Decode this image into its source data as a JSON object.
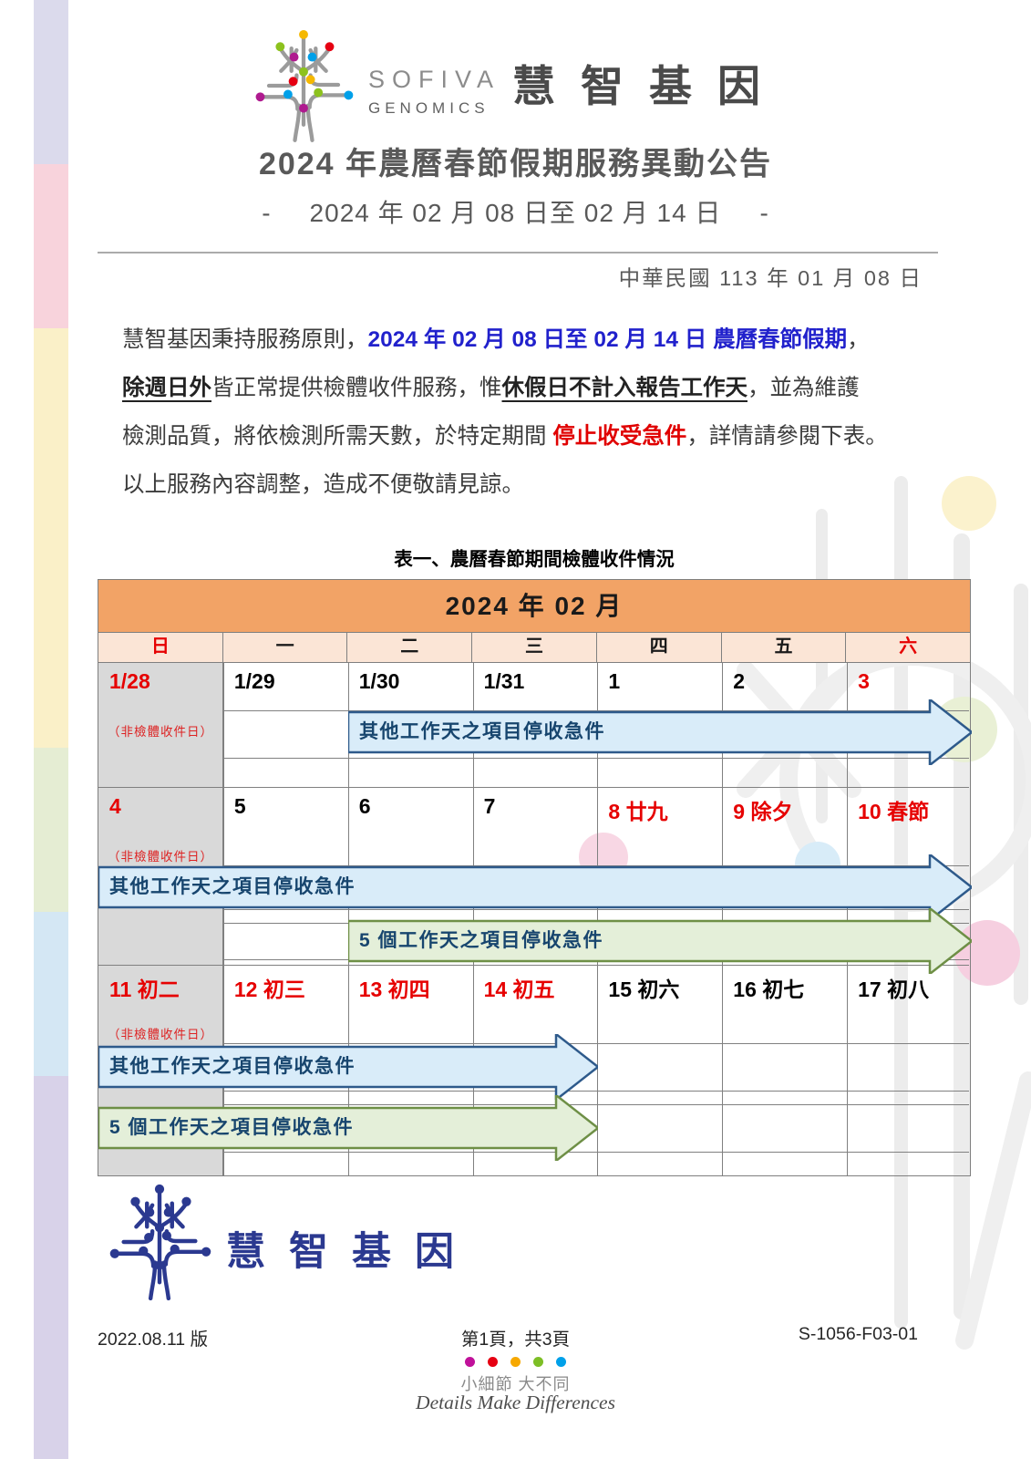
{
  "brand": {
    "name_en_line1": "SOFIVA",
    "name_en_line2": "GENOMICS",
    "name_zh": "慧智基因",
    "footer_name_zh": "慧智基因"
  },
  "header": {
    "title": "2024 年農曆春節假期服務異動公告",
    "dash": "-",
    "date_range": "2024 年 02 月 08 日至 02 月 14 日",
    "roc_date": "中華民國 113 年 01 月 08 日"
  },
  "body": {
    "lines": [
      [
        {
          "t": "慧智基因秉持服務原則，"
        },
        {
          "t": "2024 年 02 月 08 日至 02 月 14 日 農曆春節假期",
          "s": "blue"
        },
        {
          "t": "，"
        }
      ],
      [
        {
          "t": "除週日外",
          "s": "bu"
        },
        {
          "t": "皆正常提供檢體收件服務，惟"
        },
        {
          "t": "休假日不計入報告工作天",
          "s": "bu"
        },
        {
          "t": "，並為維護"
        }
      ],
      [
        {
          "t": "檢測品質，將依檢測所需天數，於特定期間 "
        },
        {
          "t": "停止收受急件",
          "s": "red"
        },
        {
          "t": "，詳情請參閱下表。"
        }
      ],
      [
        {
          "t": "以上服務內容調整，造成不便敬請見諒。"
        }
      ]
    ]
  },
  "table": {
    "caption": "表一、農曆春節期間檢體收件情況",
    "month_title": "2024 年 02 月",
    "day_headers": [
      {
        "label": "日",
        "red": true
      },
      {
        "label": "一"
      },
      {
        "label": "二"
      },
      {
        "label": "三"
      },
      {
        "label": "四"
      },
      {
        "label": "五"
      },
      {
        "label": "六",
        "red": true
      }
    ],
    "weeks": [
      {
        "days": [
          {
            "label": "1/28",
            "holiday": true,
            "gray": true,
            "note": "（非檢體收件日）"
          },
          {
            "label": "1/29"
          },
          {
            "label": "1/30"
          },
          {
            "label": "1/31"
          },
          {
            "label": "1"
          },
          {
            "label": "2"
          },
          {
            "label": "3",
            "holiday": true
          }
        ]
      },
      {
        "days": [
          {
            "label": "4",
            "holiday": true,
            "gray": true,
            "note": "（非檢體收件日）"
          },
          {
            "label": "5"
          },
          {
            "label": "6"
          },
          {
            "label": "7"
          },
          {
            "label": "8 廿九",
            "holiday": true
          },
          {
            "label": "9 除夕",
            "holiday": true
          },
          {
            "label": "10 春節",
            "holiday": true
          }
        ]
      },
      {
        "days": [
          {
            "label": "11 初二",
            "holiday": true,
            "gray": true,
            "note": "（非檢體收件日）"
          },
          {
            "label": "12 初三",
            "holiday": true
          },
          {
            "label": "13 初四",
            "holiday": true
          },
          {
            "label": "14 初五",
            "holiday": true
          },
          {
            "label": "15 初六"
          },
          {
            "label": "16 初七"
          },
          {
            "label": "17 初八"
          }
        ]
      }
    ],
    "arrows": {
      "w1_blue": "其他工作天之項目停收急件",
      "w2_blue": "其他工作天之項目停收急件",
      "w2_green": "5 個工作天之項目停收急件",
      "w3_blue": "其他工作天之項目停收急件",
      "w3_green": "5 個工作天之項目停收急件"
    }
  },
  "footer": {
    "version": "2022.08.11 版",
    "page_info": "第1頁，共3頁",
    "doc_code": "S-1056-F03-01",
    "slogan_zh": "小細節 大不同",
    "slogan_en": "Details Make Differences",
    "dot_colors": [
      "#C0119A",
      "#E60012",
      "#F6A800",
      "#7DBE25",
      "#00A0E9"
    ]
  },
  "palette": {
    "side_strip": [
      "#DBDAEC",
      "#F8D3DC",
      "#FAF0C8",
      "#E5EDD3",
      "#D4E7F4",
      "#D8D2E9"
    ],
    "accent_blue": "#2121CC",
    "accent_red": "#E60000",
    "month_header_bg": "#F2A366",
    "day_header_bg": "#FBE5D6",
    "arrow_blue_fill": "#D9ECF9",
    "arrow_blue_stroke": "#2E5A8B",
    "arrow_green_fill": "#E4EFD9",
    "arrow_green_stroke": "#6E8F46"
  }
}
